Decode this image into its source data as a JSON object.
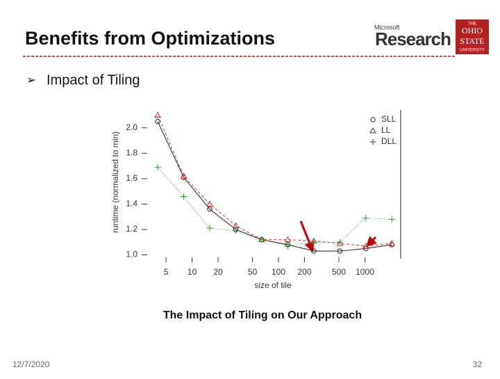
{
  "slide": {
    "title": "Benefits from Optimizations",
    "bullet": "Impact of Tiling",
    "caption": "The Impact of Tiling on Our Approach",
    "date": "12/7/2020",
    "page": "32",
    "logos": {
      "microsoft": "Microsoft",
      "research": "Research",
      "osu": [
        "THE",
        "OHIO",
        "STATE",
        "UNIVERSITY"
      ]
    }
  },
  "chart_data": {
    "type": "line",
    "x_label": "size of tile",
    "y_label": "runtime (normalized to min)",
    "x": [
      4,
      8,
      16,
      32,
      64,
      128,
      256,
      512,
      1024,
      2048
    ],
    "xlim": [
      3.2,
      2500
    ],
    "xscale": "log",
    "xticks": [
      5,
      10,
      20,
      50,
      100,
      200,
      500,
      1000
    ],
    "ylim": [
      0.97,
      2.13
    ],
    "yticks": [
      {
        "value": 1,
        "label": "1.0"
      },
      1.2,
      1.4,
      1.6,
      1.8,
      {
        "value": 2,
        "label": "2.0"
      }
    ],
    "legend": "top-right",
    "series": [
      {
        "name": "SLL",
        "color": "#222222",
        "marker": "circle",
        "dash": "solid",
        "values": [
          2.05,
          1.61,
          1.36,
          1.2,
          1.12,
          1.08,
          1.03,
          1.03,
          1.05,
          1.08
        ]
      },
      {
        "name": "LL",
        "color": "#d33333",
        "marker": "triangle",
        "dash": "dashed",
        "values": [
          2.1,
          1.62,
          1.4,
          1.23,
          1.12,
          1.12,
          1.11,
          1.09,
          1.07,
          1.09
        ]
      },
      {
        "name": "DLL",
        "color": "#33a033",
        "marker": "plus",
        "dash": "dotted",
        "values": [
          1.69,
          1.46,
          1.21,
          1.19,
          1.12,
          1.07,
          1.1,
          1.1,
          1.29,
          1.28
        ]
      }
    ]
  }
}
